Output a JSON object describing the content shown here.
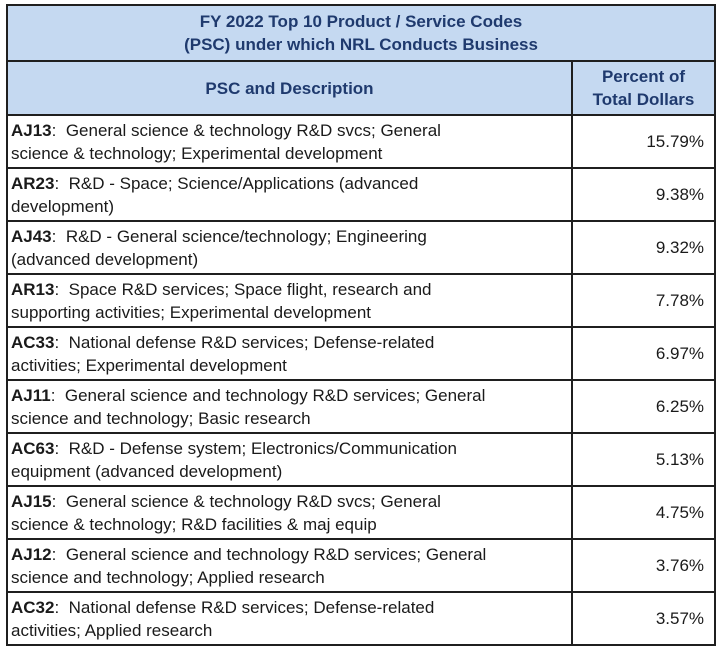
{
  "table": {
    "title_line1": "FY 2022 Top 10 Product / Service Codes",
    "title_line2": "(PSC) under which NRL Conducts Business",
    "header_psc": "PSC and Description",
    "header_pct_line1": "Percent of",
    "header_pct_line2": "Total Dollars",
    "rows": [
      {
        "code": "AJ13",
        "sep": ":  ",
        "line1": "General science & technology R&D svcs; General",
        "line2": "science & technology; Experimental development",
        "pct": "15.79%"
      },
      {
        "code": "AR23",
        "sep": ":  ",
        "line1": "R&D - Space; Science/Applications (advanced",
        "line2": "development)",
        "pct": "9.38%"
      },
      {
        "code": "AJ43",
        "sep": ":  ",
        "line1": "R&D - General science/technology; Engineering",
        "line2": "(advanced development)",
        "pct": "9.32%"
      },
      {
        "code": "AR13",
        "sep": ":  ",
        "line1": "Space R&D services; Space flight, research and",
        "line2": "supporting activities; Experimental development",
        "pct": "7.78%"
      },
      {
        "code": "AC33",
        "sep": ":  ",
        "line1": "National defense R&D services; Defense-related",
        "line2": "activities; Experimental development",
        "pct": "6.97%"
      },
      {
        "code": "AJ11",
        "sep": ":  ",
        "line1": "General science and technology R&D services; General",
        "line2": "science and technology; Basic research",
        "pct": "6.25%"
      },
      {
        "code": "AC63",
        "sep": ":  ",
        "line1": "R&D - Defense system; Electronics/Communication",
        "line2": "equipment (advanced development)",
        "pct": "5.13%"
      },
      {
        "code": "AJ15",
        "sep": ":  ",
        "line1": "General science & technology R&D svcs; General",
        "line2": "science & technology; R&D facilities & maj equip",
        "pct": "4.75%"
      },
      {
        "code": "AJ12",
        "sep": ":  ",
        "line1": "General science and technology R&D services; General",
        "line2": "science and technology; Applied research",
        "pct": "3.76%"
      },
      {
        "code": "AC32",
        "sep": ":  ",
        "line1": "National defense R&D services; Defense-related",
        "line2": "activities; Applied research",
        "pct": "3.57%"
      }
    ]
  }
}
